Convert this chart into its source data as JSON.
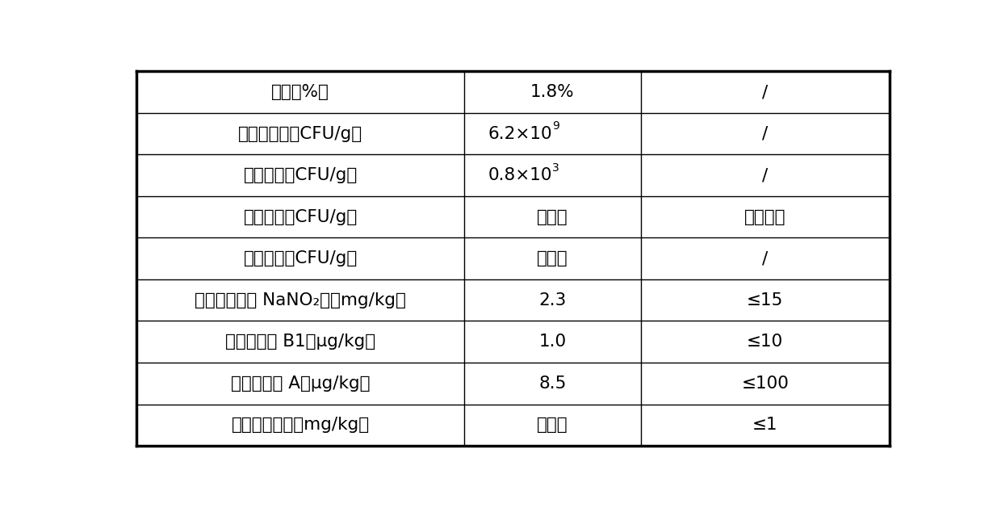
{
  "rows": [
    {
      "col1": "乳酸（%）",
      "col2": "1.8%",
      "col2_superscript": null,
      "col3": "/"
    },
    {
      "col1": "植物乳杆菌（CFU/g）",
      "col2": "6.2×10",
      "col2_superscript": "9",
      "col3": "/"
    },
    {
      "col1": "大肠杆菌（CFU/g）",
      "col2": "0.8×10",
      "col2_superscript": "3",
      "col3": "/"
    },
    {
      "col1": "沙门氏菌（CFU/g）",
      "col2": "未检出",
      "col2_superscript": null,
      "col3": "不得检出"
    },
    {
      "col1": "志贺氏菌（CFU/g）",
      "col2": "未检出",
      "col2_superscript": null,
      "col3": "/"
    },
    {
      "col1": "亚硒酸盐（以 NaNO₂计，mg/kg）",
      "col2": "2.3",
      "col2_superscript": null,
      "col3": "≤15"
    },
    {
      "col1": "黄曲霍毒素 B1（μg/kg）",
      "col2": "1.0",
      "col2_superscript": null,
      "col3": "≤10"
    },
    {
      "col1": "赭曲霍毒素 A（μg/kg）",
      "col2": "8.5",
      "col2_superscript": null,
      "col3": "≤100"
    },
    {
      "col1": "玉米赤霍烯酮（mg/kg）",
      "col2": "未检出",
      "col2_superscript": null,
      "col3": "≤1"
    }
  ],
  "col_boundaries": [
    0.0,
    0.435,
    0.67,
    1.0
  ],
  "background_color": "#ffffff",
  "line_color": "#000000",
  "text_color": "#000000",
  "font_size": 15.5,
  "outer_lw": 2.5,
  "inner_lw": 1.0
}
